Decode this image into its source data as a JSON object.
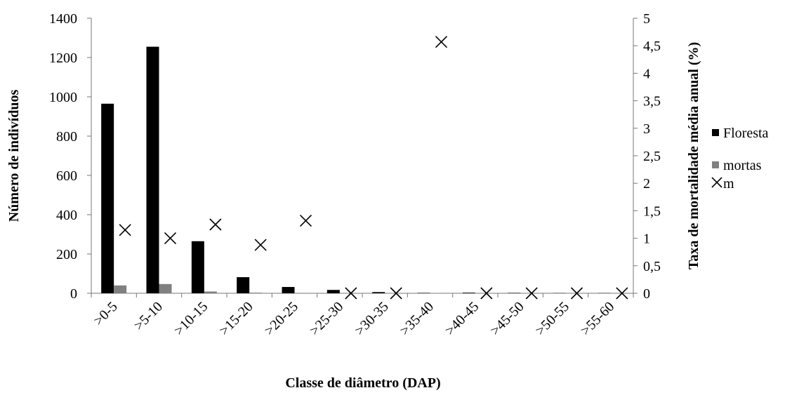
{
  "chart_data": {
    "type": "bar",
    "categories": [
      ">0-5",
      ">5-10",
      ">10-15",
      ">15-20",
      ">20-25",
      ">25-30",
      ">30-35",
      ">35-40",
      ">40-45",
      ">45-50",
      ">50-55",
      ">55-60"
    ],
    "series": [
      {
        "name": "Floresta",
        "type": "bar",
        "axis": "left",
        "color": "#000000",
        "values": [
          965,
          1255,
          265,
          82,
          32,
          17,
          6,
          2,
          3,
          2,
          1,
          1
        ]
      },
      {
        "name": "mortas",
        "type": "bar",
        "axis": "left",
        "color": "#808080",
        "values": [
          40,
          47,
          9,
          3,
          2,
          0,
          0,
          1,
          0,
          0,
          0,
          0
        ]
      },
      {
        "name": "m",
        "type": "scatter",
        "axis": "right",
        "marker": "x",
        "color": "#000000",
        "values": [
          1.15,
          1.0,
          1.25,
          0.88,
          1.32,
          0,
          0,
          4.57,
          0,
          0,
          0,
          0
        ]
      }
    ],
    "xlabel": "Classe de diâmetro (DAP)",
    "ylabel": "Número de indivíduos",
    "y2label": "Taxa de mortalidade média anual (%)",
    "ylim": [
      0,
      1400
    ],
    "y2lim": [
      0,
      5
    ],
    "yticks": [
      "0",
      "200",
      "400",
      "600",
      "800",
      "1000",
      "1200",
      "1400"
    ],
    "y2ticks": [
      "0",
      "0,5",
      "1",
      "1,5",
      "2",
      "2,5",
      "3",
      "3,5",
      "4",
      "4,5",
      "5"
    ],
    "legend_position": "right",
    "grid": false
  }
}
